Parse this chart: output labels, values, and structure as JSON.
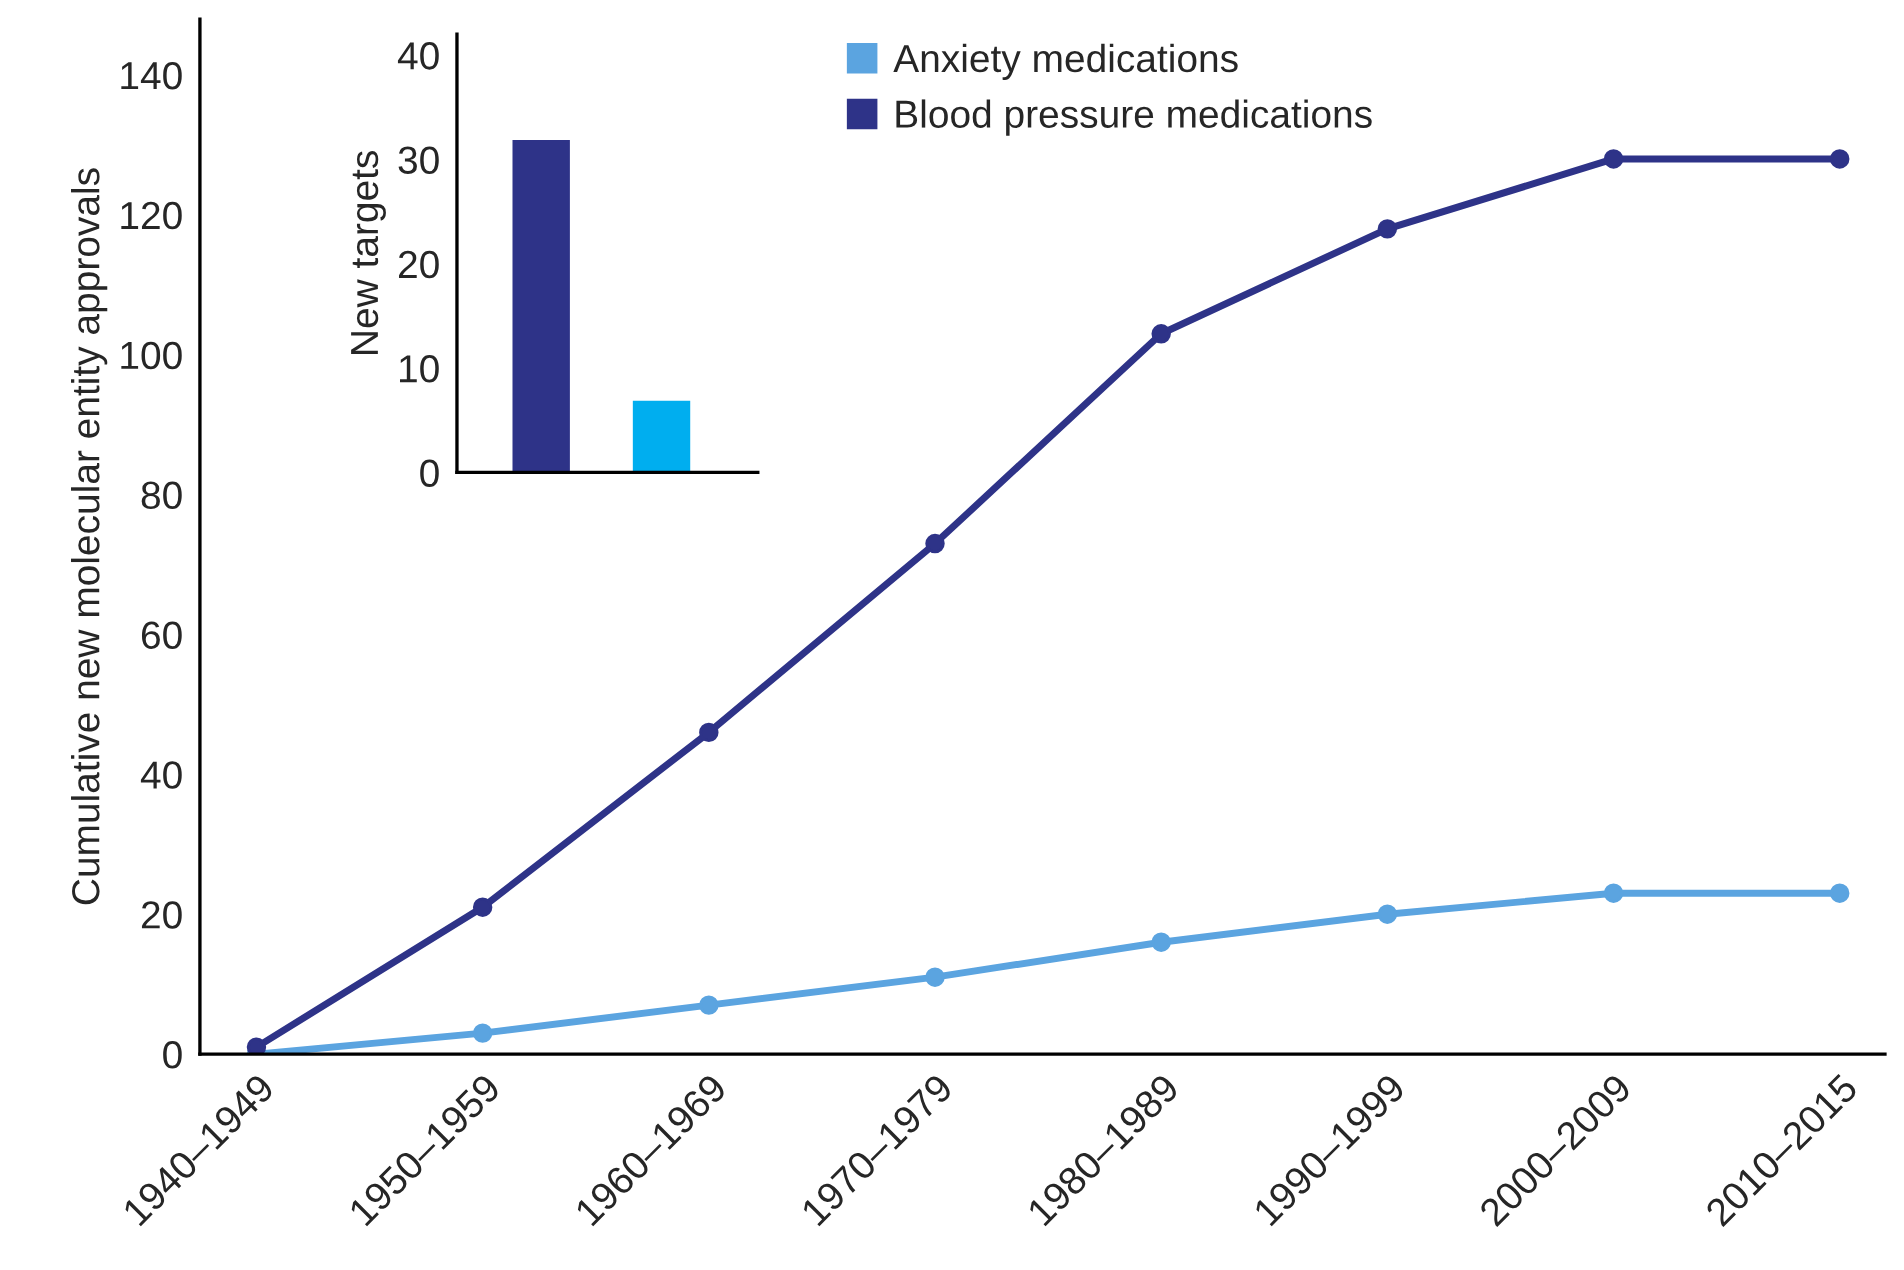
{
  "chart_data": [
    {
      "type": "line",
      "ylabel": "Cumulative new molecular entity approvals",
      "categories": [
        "1940–1949",
        "1950–1959",
        "1960–1969",
        "1970–1979",
        "1980–1989",
        "1990–1999",
        "2000–2009",
        "2010–2015"
      ],
      "series": [
        {
          "name": "Anxiety medications",
          "color": "#5ba4e0",
          "values": [
            0,
            3,
            7,
            11,
            16,
            20,
            23,
            23
          ]
        },
        {
          "name": "Blood pressure medications",
          "color": "#2e3388",
          "values": [
            1,
            21,
            46,
            73,
            103,
            118,
            128,
            128
          ]
        }
      ],
      "ylim": [
        0,
        148
      ],
      "yticks": [
        0,
        20,
        40,
        60,
        80,
        100,
        120,
        140
      ],
      "marker": "circle",
      "legend": "top",
      "grid": false
    },
    {
      "type": "bar",
      "ylabel": "New targets",
      "categories": [
        null,
        null
      ],
      "values": [
        32,
        7
      ],
      "colors": [
        "#2e3388",
        "#00aeef"
      ],
      "ylim": [
        0,
        42
      ],
      "yticks": [
        0,
        10,
        20,
        30,
        40
      ]
    }
  ]
}
